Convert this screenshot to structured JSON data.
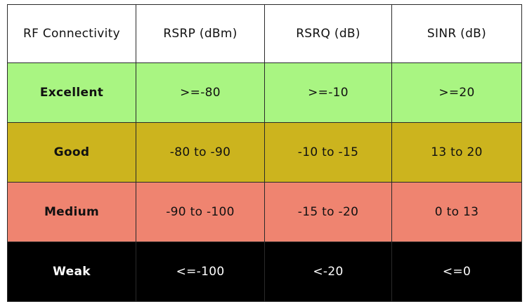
{
  "table": {
    "headers": [
      "RF Connectivity",
      "RSRP (dBm)",
      "RSRQ (dB)",
      "SINR (dB)"
    ],
    "rows": [
      {
        "label": "Excellent",
        "rsrp": ">=-80",
        "rsrq": ">=-10",
        "sinr": ">=20",
        "color": "#a9f582"
      },
      {
        "label": "Good",
        "rsrp": "-80 to -90",
        "rsrq": "-10 to -15",
        "sinr": "13 to 20",
        "color": "#ccb41e"
      },
      {
        "label": "Medium",
        "rsrp": "-90 to -100",
        "rsrq": "-15 to -20",
        "sinr": "0 to 13",
        "color": "#ef8470"
      },
      {
        "label": "Weak",
        "rsrp": "<=-100",
        "rsrq": "<-20",
        "sinr": "<=0",
        "color": "#000000"
      }
    ]
  }
}
